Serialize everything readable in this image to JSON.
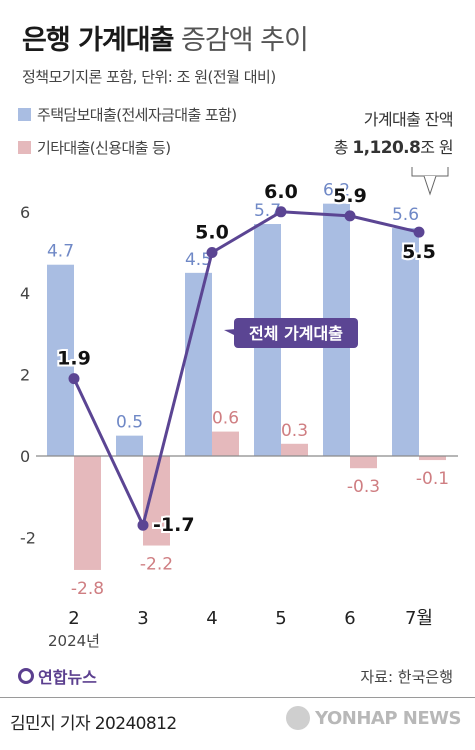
{
  "header": {
    "title_bold": "은행 가계대출",
    "title_light": "증감액 추이",
    "subtitle": "정책모기지론 포함, 단위: 조 원(전월 대비)"
  },
  "legend": {
    "mortgage": "주택담보대출(전세자금대출 포함)",
    "other": "기타대출(신용대출 등)"
  },
  "balance": {
    "line1": "가계대출 잔액",
    "prefix": "총",
    "value": "1,120.8",
    "suffix": "조 원"
  },
  "line_label": "전체 가계대출",
  "year_label": "2024년",
  "footer": {
    "logo": "연합뉴스",
    "source": "자료: 한국은행",
    "byline": "김민지 기자  20240812",
    "watermark": "YONHAP NEWS"
  },
  "colors": {
    "mortgage": "#a9bde2",
    "other": "#e5b9bc",
    "line": "#5b4593",
    "mortgage_text": "#6f88c6",
    "other_text": "#cf7e82"
  },
  "chart_data": {
    "type": "bar",
    "categories": [
      "2",
      "3",
      "4",
      "5",
      "6",
      "7월"
    ],
    "series": [
      {
        "name": "주택담보대출(전세자금대출 포함)",
        "values": [
          4.7,
          0.5,
          4.5,
          5.7,
          6.2,
          5.6
        ]
      },
      {
        "name": "기타대출(신용대출 등)",
        "values": [
          -2.8,
          -2.2,
          0.6,
          0.3,
          -0.3,
          -0.1
        ]
      },
      {
        "name": "전체 가계대출",
        "type": "line",
        "values": [
          1.9,
          -1.7,
          5.0,
          6.0,
          5.9,
          5.5
        ]
      }
    ],
    "yticks": [
      6,
      4,
      2,
      0,
      -2
    ],
    "ylim": [
      -3.2,
      6.6
    ],
    "grid": false
  }
}
